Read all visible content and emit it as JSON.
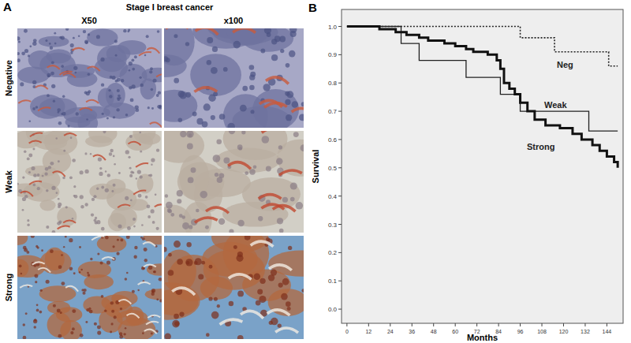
{
  "panel_a": {
    "label": "A",
    "title": "Stage I breast cancer",
    "columns": [
      "X50",
      "x100"
    ],
    "rows": [
      "Negative",
      "Weak",
      "Strong"
    ]
  },
  "chart_data": {
    "type": "line",
    "panel_label": "B",
    "x_label": "Months",
    "y_label": "Survival",
    "xlim": [
      -3,
      153
    ],
    "xticks": [
      0,
      12,
      24,
      36,
      48,
      60,
      72,
      84,
      96,
      108,
      120,
      132,
      144
    ],
    "ylim": [
      -0.05,
      1.06
    ],
    "yticks": [
      {
        "value": 0,
        "label": "0.0"
      },
      {
        "value": 0.1,
        "label": "0.1"
      },
      {
        "value": 0.2,
        "label": "0.2"
      },
      {
        "value": 0.3,
        "label": "0.3"
      },
      {
        "value": 0.4,
        "label": "0.4"
      },
      {
        "value": 0.5,
        "label": "0.5"
      },
      {
        "value": 0.6,
        "label": "0.6"
      },
      {
        "value": 0.7,
        "label": "0.7"
      },
      {
        "value": 0.8,
        "label": "0.8"
      },
      {
        "value": 0.9,
        "label": "0.9"
      },
      {
        "value": 1,
        "label": "1.0"
      }
    ],
    "grid": false,
    "series": [
      {
        "name": "Neg",
        "color": "#222222",
        "line_style": "dotted",
        "x": [
          0,
          96,
          115,
          145,
          150
        ],
        "values": [
          1.0,
          0.96,
          0.91,
          0.86,
          0.86
        ]
      },
      {
        "name": "Weak",
        "color": "#222222",
        "line_style": "solid",
        "x": [
          0,
          30,
          40,
          66,
          85,
          96,
          134,
          150
        ],
        "values": [
          1.0,
          0.94,
          0.88,
          0.82,
          0.76,
          0.7,
          0.63,
          0.63
        ]
      },
      {
        "name": "Strong",
        "color": "#111111",
        "line_style": "solid",
        "x": [
          0,
          18,
          27,
          33,
          40,
          45,
          54,
          60,
          66,
          70,
          78,
          83,
          85,
          87,
          90,
          93,
          96,
          100,
          104,
          110,
          118,
          125,
          130,
          136,
          140,
          144,
          148,
          150
        ],
        "values": [
          1.0,
          0.99,
          0.98,
          0.97,
          0.96,
          0.95,
          0.94,
          0.93,
          0.92,
          0.91,
          0.9,
          0.88,
          0.85,
          0.8,
          0.78,
          0.76,
          0.73,
          0.7,
          0.67,
          0.65,
          0.64,
          0.62,
          0.6,
          0.58,
          0.56,
          0.54,
          0.52,
          0.5
        ]
      }
    ]
  }
}
